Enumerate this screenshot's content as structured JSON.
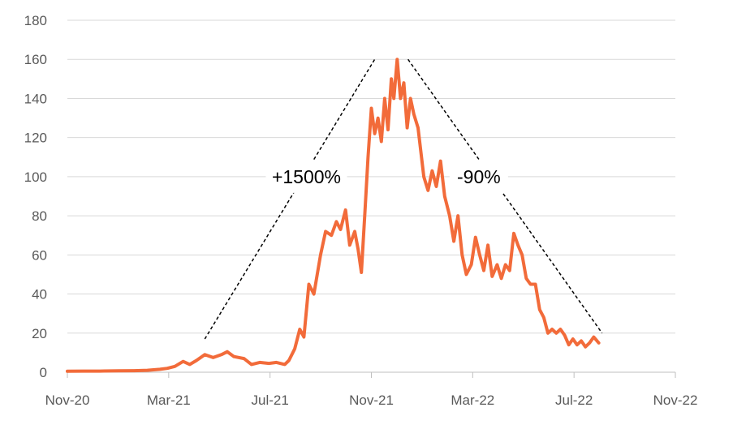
{
  "chart_data": {
    "type": "line",
    "title": "",
    "xlabel": "",
    "ylabel": "",
    "x_ticks": [
      "Nov-20",
      "Mar-21",
      "Jul-21",
      "Nov-21",
      "Mar-22",
      "Jul-22",
      "Nov-22"
    ],
    "xlim": [
      "2020-11-01",
      "2022-11-01"
    ],
    "y_ticks": [
      "0",
      "20",
      "40",
      "60",
      "80",
      "100",
      "120",
      "140",
      "160",
      "180"
    ],
    "ylim": [
      0,
      180
    ],
    "grid": "horizontal",
    "legend": "none",
    "series": [
      {
        "name": "",
        "color": "#f26b3a",
        "points": [
          [
            "2020-11-01",
            0.5
          ],
          [
            "2020-11-20",
            0.6
          ],
          [
            "2020-12-10",
            0.6
          ],
          [
            "2021-01-01",
            0.7
          ],
          [
            "2021-01-20",
            0.8
          ],
          [
            "2021-02-05",
            1.0
          ],
          [
            "2021-02-20",
            1.5
          ],
          [
            "2021-03-01",
            2.0
          ],
          [
            "2021-03-10",
            3.0
          ],
          [
            "2021-03-20",
            5.5
          ],
          [
            "2021-03-28",
            4.0
          ],
          [
            "2021-04-05",
            6.0
          ],
          [
            "2021-04-15",
            9.0
          ],
          [
            "2021-04-25",
            7.5
          ],
          [
            "2021-05-05",
            9.0
          ],
          [
            "2021-05-12",
            10.5
          ],
          [
            "2021-05-20",
            8.0
          ],
          [
            "2021-06-01",
            7.0
          ],
          [
            "2021-06-10",
            4.0
          ],
          [
            "2021-06-20",
            5.0
          ],
          [
            "2021-07-01",
            4.5
          ],
          [
            "2021-07-10",
            5.0
          ],
          [
            "2021-07-20",
            4.0
          ],
          [
            "2021-07-25",
            6.0
          ],
          [
            "2021-08-01",
            12.0
          ],
          [
            "2021-08-07",
            22.0
          ],
          [
            "2021-08-12",
            18.0
          ],
          [
            "2021-08-18",
            45.0
          ],
          [
            "2021-08-24",
            40.0
          ],
          [
            "2021-09-01",
            60.0
          ],
          [
            "2021-09-07",
            72.0
          ],
          [
            "2021-09-14",
            70.0
          ],
          [
            "2021-09-20",
            77.0
          ],
          [
            "2021-09-25",
            73.0
          ],
          [
            "2021-10-01",
            83.0
          ],
          [
            "2021-10-06",
            65.0
          ],
          [
            "2021-10-12",
            72.0
          ],
          [
            "2021-10-16",
            63.0
          ],
          [
            "2021-10-20",
            51.0
          ],
          [
            "2021-10-24",
            80.0
          ],
          [
            "2021-10-28",
            110.0
          ],
          [
            "2021-11-01",
            135.0
          ],
          [
            "2021-11-05",
            122.0
          ],
          [
            "2021-11-09",
            130.0
          ],
          [
            "2021-11-13",
            118.0
          ],
          [
            "2021-11-17",
            140.0
          ],
          [
            "2021-11-21",
            124.0
          ],
          [
            "2021-11-25",
            150.0
          ],
          [
            "2021-11-28",
            140.0
          ],
          [
            "2021-12-02",
            160.0
          ],
          [
            "2021-12-06",
            140.0
          ],
          [
            "2021-12-10",
            148.0
          ],
          [
            "2021-12-14",
            125.0
          ],
          [
            "2021-12-18",
            140.0
          ],
          [
            "2021-12-22",
            132.0
          ],
          [
            "2021-12-27",
            125.0
          ],
          [
            "2022-01-03",
            100.0
          ],
          [
            "2022-01-08",
            93.0
          ],
          [
            "2022-01-13",
            103.0
          ],
          [
            "2022-01-18",
            95.0
          ],
          [
            "2022-01-23",
            108.0
          ],
          [
            "2022-01-28",
            90.0
          ],
          [
            "2022-02-03",
            80.0
          ],
          [
            "2022-02-08",
            67.0
          ],
          [
            "2022-02-13",
            80.0
          ],
          [
            "2022-02-18",
            60.0
          ],
          [
            "2022-02-23",
            50.0
          ],
          [
            "2022-03-01",
            55.0
          ],
          [
            "2022-03-06",
            69.0
          ],
          [
            "2022-03-11",
            60.0
          ],
          [
            "2022-03-16",
            52.0
          ],
          [
            "2022-03-21",
            65.0
          ],
          [
            "2022-03-26",
            49.0
          ],
          [
            "2022-04-01",
            55.0
          ],
          [
            "2022-04-06",
            48.0
          ],
          [
            "2022-04-11",
            55.0
          ],
          [
            "2022-04-16",
            52.0
          ],
          [
            "2022-04-21",
            71.0
          ],
          [
            "2022-04-26",
            65.0
          ],
          [
            "2022-05-01",
            60.0
          ],
          [
            "2022-05-06",
            48.0
          ],
          [
            "2022-05-11",
            45.0
          ],
          [
            "2022-05-17",
            45.0
          ],
          [
            "2022-05-22",
            32.0
          ],
          [
            "2022-05-27",
            28.0
          ],
          [
            "2022-06-01",
            20.0
          ],
          [
            "2022-06-06",
            22.0
          ],
          [
            "2022-06-11",
            20.0
          ],
          [
            "2022-06-16",
            22.0
          ],
          [
            "2022-06-21",
            19.0
          ],
          [
            "2022-06-26",
            14.0
          ],
          [
            "2022-07-01",
            17.0
          ],
          [
            "2022-07-06",
            14.0
          ],
          [
            "2022-07-11",
            16.0
          ],
          [
            "2022-07-16",
            13.0
          ],
          [
            "2022-07-21",
            15.0
          ],
          [
            "2022-07-26",
            18.0
          ],
          [
            "2022-08-01",
            15.0
          ]
        ]
      }
    ],
    "annotations": [
      {
        "text": "+1500%",
        "x": "2021-08-15",
        "y": 100,
        "line_from": [
          "2021-04-15",
          17
        ],
        "line_to": [
          "2021-11-05",
          160
        ]
      },
      {
        "text": "-90%",
        "x": "2022-03-10",
        "y": 100,
        "line_from": [
          "2021-12-15",
          160
        ],
        "line_to": [
          "2022-08-05",
          20
        ]
      }
    ]
  }
}
